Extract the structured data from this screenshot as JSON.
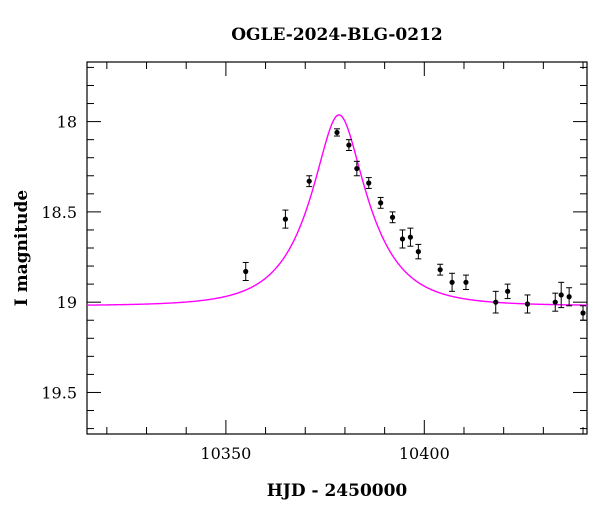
{
  "chart_data": {
    "type": "scatter",
    "title": "OGLE-2024-BLG-0212",
    "xlabel": "HJD - 2450000",
    "ylabel": "I magnitude",
    "xlim": [
      10315,
      10441
    ],
    "ylim": [
      19.73,
      17.67
    ],
    "y_inverted": true,
    "x_major_ticks": [
      10350,
      10400
    ],
    "x_minor_step": 10,
    "y_major_ticks": [
      18,
      18.5,
      19,
      19.5
    ],
    "y_major_labels": [
      "18",
      "18.5",
      "19",
      "19.5"
    ],
    "y_minor_step": 0.1,
    "grid": false,
    "x_tick_labels": [
      "10350",
      "10400"
    ],
    "series": [
      {
        "kind": "points_with_errorbars",
        "color": "#000000",
        "points": [
          {
            "x": 10355.0,
            "y": 18.83,
            "err": 0.05
          },
          {
            "x": 10365.0,
            "y": 18.54,
            "err": 0.05
          },
          {
            "x": 10371.0,
            "y": 18.33,
            "err": 0.03
          },
          {
            "x": 10378.0,
            "y": 18.06,
            "err": 0.02
          },
          {
            "x": 10381.0,
            "y": 18.13,
            "err": 0.03
          },
          {
            "x": 10383.0,
            "y": 18.26,
            "err": 0.04
          },
          {
            "x": 10386.0,
            "y": 18.34,
            "err": 0.03
          },
          {
            "x": 10389.0,
            "y": 18.45,
            "err": 0.03
          },
          {
            "x": 10392.0,
            "y": 18.53,
            "err": 0.03
          },
          {
            "x": 10394.5,
            "y": 18.65,
            "err": 0.05
          },
          {
            "x": 10396.5,
            "y": 18.64,
            "err": 0.05
          },
          {
            "x": 10398.5,
            "y": 18.72,
            "err": 0.04
          },
          {
            "x": 10404.0,
            "y": 18.82,
            "err": 0.03
          },
          {
            "x": 10407.0,
            "y": 18.89,
            "err": 0.05
          },
          {
            "x": 10410.5,
            "y": 18.89,
            "err": 0.04
          },
          {
            "x": 10418.0,
            "y": 19.0,
            "err": 0.06
          },
          {
            "x": 10421.0,
            "y": 18.94,
            "err": 0.04
          },
          {
            "x": 10426.0,
            "y": 19.01,
            "err": 0.05
          },
          {
            "x": 10433.0,
            "y": 19.0,
            "err": 0.05
          },
          {
            "x": 10434.5,
            "y": 18.96,
            "err": 0.07
          },
          {
            "x": 10436.5,
            "y": 18.97,
            "err": 0.05
          },
          {
            "x": 10440.0,
            "y": 19.06,
            "err": 0.04
          }
        ]
      },
      {
        "kind": "model_curve",
        "color": "#ff00ff",
        "model": "pspl",
        "t0": 10378.5,
        "u0": 0.4,
        "tE": 13.5,
        "baseline_mag": 19.02
      }
    ]
  }
}
